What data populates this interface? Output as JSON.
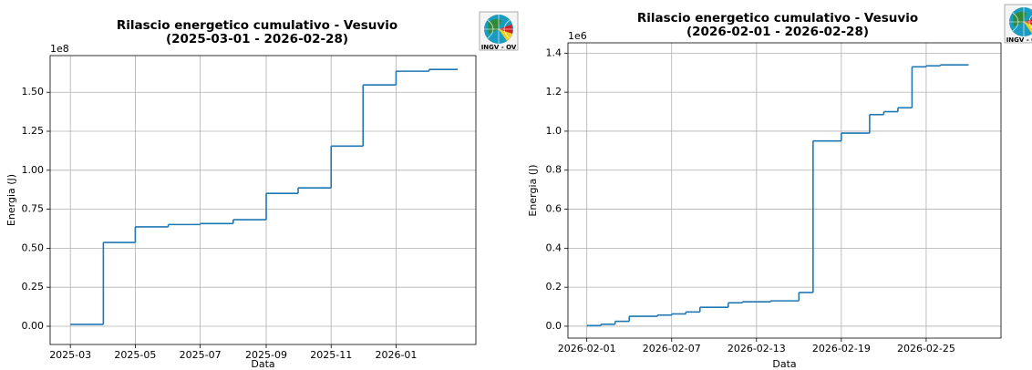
{
  "chart_data": [
    {
      "type": "step",
      "title": "Rilascio energetico cumulativo - Vesuvio",
      "subtitle": "(2025-03-01 - 2026-02-28)",
      "xlabel": "Data",
      "ylabel": "Energia (J)",
      "y_offset_label": "1e8",
      "logo_text": "INGV - OV",
      "x": [
        "2025-03-01",
        "2025-04-01",
        "2025-05-01",
        "2025-06-01",
        "2025-07-01",
        "2025-08-01",
        "2025-09-01",
        "2025-10-01",
        "2025-11-01",
        "2025-12-01",
        "2026-01-01",
        "2026-02-01",
        "2026-02-28"
      ],
      "series": [
        {
          "color": "#1f77b4",
          "values": [
            0.012,
            0.537,
            0.637,
            0.652,
            0.658,
            0.683,
            0.852,
            0.887,
            1.155,
            1.547,
            1.635,
            1.646,
            1.646
          ]
        }
      ],
      "xlim": [
        "2025-02-10T00:00",
        "2026-03-17T00:00"
      ],
      "xticks": [
        {
          "value": "2025-03-01",
          "label": "2025-03"
        },
        {
          "value": "2025-05-01",
          "label": "2025-05"
        },
        {
          "value": "2025-07-01",
          "label": "2025-07"
        },
        {
          "value": "2025-09-01",
          "label": "2025-09"
        },
        {
          "value": "2025-11-01",
          "label": "2025-11"
        },
        {
          "value": "2026-01-01",
          "label": "2026-01"
        }
      ],
      "ylim": [
        -0.117,
        1.735
      ],
      "yticks": [
        {
          "value": 0,
          "label": "0.00"
        },
        0.25,
        {
          "value": 0.5,
          "label": "0.50"
        },
        0.75,
        {
          "value": 1,
          "label": "1.00"
        },
        1.25,
        {
          "value": 1.5,
          "label": "1.50"
        }
      ],
      "grid": true
    },
    {
      "type": "step",
      "title": "Rilascio energetico cumulativo - Vesuvio",
      "subtitle": "(2026-02-01 - 2026-02-28)",
      "xlabel": "Data",
      "ylabel": "Energia (J)",
      "y_offset_label": "1e6",
      "logo_text": "INGV - OV",
      "x": [
        "2026-02-01",
        "2026-02-02",
        "2026-02-03",
        "2026-02-04",
        "2026-02-06",
        "2026-02-07",
        "2026-02-08",
        "2026-02-09",
        "2026-02-11",
        "2026-02-12",
        "2026-02-14",
        "2026-02-16",
        "2026-02-17",
        "2026-02-19",
        "2026-02-21",
        "2026-02-22",
        "2026-02-23",
        "2026-02-24",
        "2026-02-25",
        "2026-02-26",
        "2026-02-28"
      ],
      "series": [
        {
          "color": "#1f77b4",
          "values": [
            0.003,
            0.01,
            0.025,
            0.051,
            0.057,
            0.063,
            0.073,
            0.097,
            0.12,
            0.125,
            0.13,
            0.173,
            0.95,
            0.99,
            1.085,
            1.1,
            1.12,
            1.33,
            1.335,
            1.34,
            1.34
          ]
        }
      ],
      "xlim": [
        "2026-01-30T16:00",
        "2026-03-02T07:00"
      ],
      "xticks": [
        {
          "value": "2026-02-01",
          "label": "2026-02-01"
        },
        {
          "value": "2026-02-07",
          "label": "2026-02-07"
        },
        {
          "value": "2026-02-13",
          "label": "2026-02-13"
        },
        {
          "value": "2026-02-19",
          "label": "2026-02-19"
        },
        {
          "value": "2026-02-25",
          "label": "2026-02-25"
        }
      ],
      "ylim": [
        -0.061,
        1.453
      ],
      "yticks": [
        {
          "value": 0,
          "label": "0.0"
        },
        0.2,
        0.4,
        0.6,
        0.8,
        {
          "value": 1,
          "label": "1.0"
        },
        1.2,
        1.4
      ],
      "grid": true
    }
  ]
}
